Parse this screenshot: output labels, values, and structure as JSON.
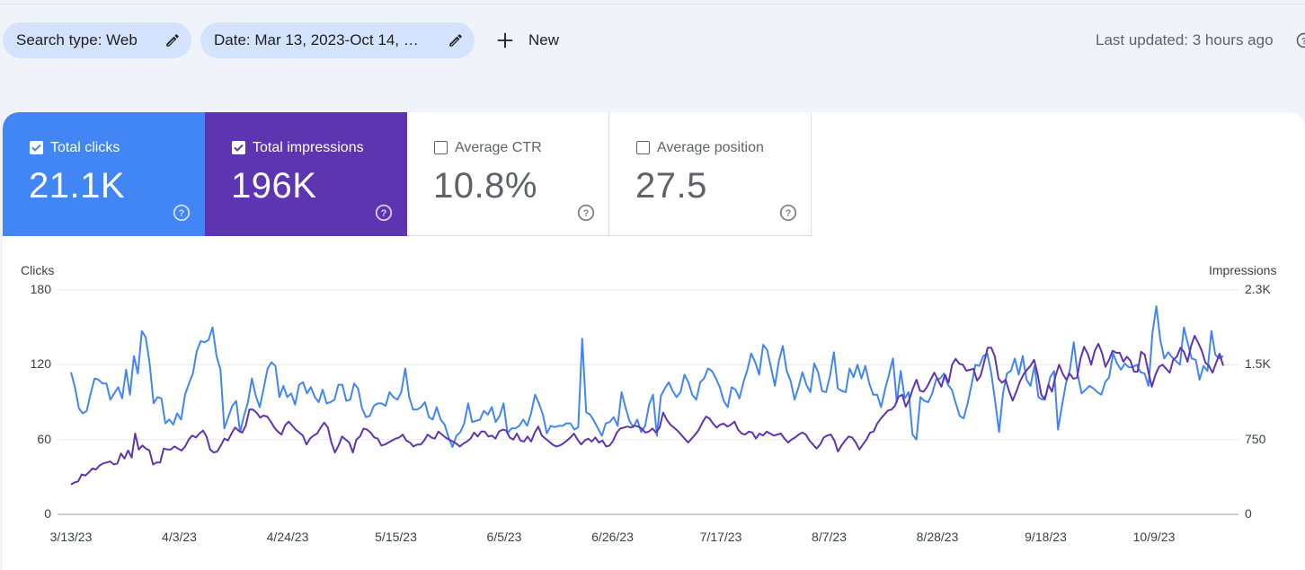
{
  "filters": {
    "search_type": "Search type: Web",
    "date": "Date: Mar 13, 2023-Oct 14, …",
    "new_label": "New"
  },
  "last_updated": "Last updated: 3 hours ago",
  "metrics": [
    {
      "label": "Total clicks",
      "value": "21.1K",
      "checked": true,
      "color": "#4285f4"
    },
    {
      "label": "Total impressions",
      "value": "196K",
      "checked": true,
      "color": "#5e35b1"
    },
    {
      "label": "Average CTR",
      "value": "10.8%",
      "checked": false
    },
    {
      "label": "Average position",
      "value": "27.5",
      "checked": false
    }
  ],
  "chart_data": {
    "type": "line",
    "left_axis_label": "Clicks",
    "right_axis_label": "Impressions",
    "left_ticks": [
      "180",
      "120",
      "60",
      "0"
    ],
    "right_ticks": [
      "2.3K",
      "1.5K",
      "750",
      "0"
    ],
    "x_ticks": [
      "3/13/23",
      "4/3/23",
      "4/24/23",
      "5/15/23",
      "6/5/23",
      "6/26/23",
      "7/17/23",
      "8/7/23",
      "8/28/23",
      "9/18/23",
      "10/9/23"
    ],
    "ylim_left": [
      0,
      180
    ],
    "ylim_right": [
      0,
      2250
    ],
    "grid": true,
    "series": [
      {
        "name": "Clicks",
        "axis": "left",
        "color": "#4285f4",
        "values": [
          114,
          102,
          85,
          81,
          83,
          97,
          109,
          108,
          105,
          105,
          92,
          97,
          102,
          93,
          116,
          96,
          127,
          113,
          147,
          142,
          121,
          89,
          94,
          93,
          73,
          76,
          72,
          81,
          76,
          96,
          105,
          113,
          131,
          139,
          138,
          140,
          150,
          127,
          116,
          69,
          78,
          87,
          91,
          66,
          79,
          90,
          109,
          95,
          86,
          101,
          117,
          122,
          119,
          94,
          103,
          94,
          97,
          88,
          104,
          106,
          97,
          102,
          94,
          90,
          100,
          89,
          90,
          92,
          104,
          104,
          91,
          92,
          105,
          101,
          85,
          78,
          79,
          87,
          89,
          89,
          87,
          98,
          94,
          92,
          98,
          117,
          94,
          84,
          84,
          86,
          90,
          78,
          76,
          86,
          76,
          72,
          62,
          54,
          63,
          66,
          73,
          89,
          74,
          75,
          76,
          83,
          80,
          86,
          74,
          79,
          89,
          65,
          69,
          69,
          71,
          76,
          71,
          81,
          96,
          89,
          80,
          65,
          71,
          70,
          71,
          71,
          73,
          73,
          68,
          70,
          141,
          82,
          80,
          75,
          69,
          63,
          73,
          74,
          78,
          71,
          98,
          86,
          75,
          70,
          76,
          66,
          71,
          88,
          96,
          63,
          95,
          101,
          106,
          99,
          94,
          98,
          112,
          106,
          96,
          92,
          106,
          109,
          117,
          115,
          109,
          102,
          91,
          86,
          102,
          100,
          93,
          106,
          116,
          129,
          122,
          112,
          136,
          132,
          118,
          103,
          123,
          135,
          115,
          107,
          92,
          102,
          114,
          104,
          98,
          121,
          114,
          99,
          98,
          111,
          130,
          101,
          99,
          98,
          117,
          110,
          120,
          109,
          119,
          105,
          96,
          96,
          86,
          100,
          112,
          125,
          90,
          115,
          93,
          98,
          64,
          60,
          94,
          91,
          90,
          97,
          108,
          109,
          113,
          104,
          100,
          89,
          79,
          77,
          89,
          104,
          120,
          119,
          127,
          129,
          114,
          91,
          66,
          97,
          113,
          115,
          125,
          112,
          127,
          108,
          103,
          119,
          94,
          92,
          96,
          110,
          115,
          68,
          87,
          105,
          116,
          138,
          112,
          97,
          100,
          103,
          101,
          98,
          96,
          106,
          110,
          129,
          121,
          116,
          121,
          118,
          118,
          120,
          114,
          113,
          103,
          145,
          167,
          140,
          125,
          130,
          126,
          123,
          120,
          150,
          137,
          125,
          124,
          108,
          119,
          115,
          147,
          128,
          125,
          127
        ],
        "x_frac_note": "daily"
      },
      {
        "name": "Impressions",
        "axis": "right",
        "color": "#5e35b1",
        "values": [
          300,
          320,
          330,
          400,
          390,
          420,
          460,
          450,
          490,
          510,
          520,
          530,
          500,
          510,
          610,
          560,
          640,
          570,
          810,
          650,
          690,
          660,
          640,
          500,
          520,
          520,
          660,
          650,
          650,
          680,
          660,
          640,
          680,
          750,
          790,
          770,
          810,
          840,
          780,
          650,
          620,
          630,
          690,
          760,
          740,
          810,
          870,
          840,
          820,
          890,
          1050,
          1050,
          1020,
          970,
          990,
          980,
          930,
          870,
          830,
          800,
          890,
          930,
          890,
          850,
          820,
          790,
          700,
          760,
          790,
          810,
          870,
          920,
          870,
          720,
          620,
          690,
          780,
          750,
          720,
          620,
          750,
          780,
          860,
          850,
          820,
          770,
          760,
          690,
          700,
          720,
          740,
          760,
          770,
          800,
          740,
          720,
          680,
          700,
          700,
          740,
          800,
          770,
          760,
          830,
          800,
          770,
          750,
          730,
          710,
          680,
          710,
          730,
          760,
          820,
          780,
          830,
          830,
          780,
          790,
          760,
          830,
          850,
          840,
          770,
          750,
          810,
          740,
          730,
          780,
          730,
          820,
          880,
          790,
          760,
          730,
          700,
          680,
          690,
          710,
          740,
          770,
          810,
          750,
          700,
          740,
          760,
          730,
          770,
          720,
          740,
          680,
          690,
          740,
          820,
          860,
          870,
          880,
          870,
          890,
          880,
          860,
          820,
          830,
          860,
          820,
          870,
          1020,
          950,
          900,
          870,
          840,
          800,
          760,
          720,
          760,
          800,
          850,
          920,
          980,
          960,
          910,
          870,
          900,
          910,
          880,
          900,
          930,
          850,
          810,
          800,
          830,
          820,
          760,
          810,
          790,
          830,
          810,
          790,
          800,
          810,
          760,
          720,
          750,
          770,
          800,
          820,
          800,
          740,
          700,
          660,
          700,
          770,
          790,
          800,
          740,
          630,
          690,
          740,
          780,
          770,
          720,
          650,
          700,
          750,
          820,
          830,
          910,
          960,
          1000,
          1040,
          1050,
          1090,
          1180,
          1200,
          1080,
          1150,
          1260,
          1350,
          1240,
          1230,
          1280,
          1350,
          1420,
          1350,
          1280,
          1400,
          1320,
          1500,
          1560,
          1510,
          1500,
          1440,
          1450,
          1460,
          1340,
          1390,
          1530,
          1670,
          1670,
          1580,
          1360,
          1320,
          1350,
          1230,
          1140,
          1230,
          1330,
          1400,
          1450,
          1490,
          1550,
          1400,
          1200,
          1150,
          1300,
          1230,
          1390,
          1500,
          1410,
          1350,
          1410,
          1360,
          1370,
          1560,
          1680,
          1610,
          1500,
          1640,
          1710,
          1620,
          1480,
          1550,
          1640,
          1620,
          1620,
          1530,
          1580,
          1540,
          1430,
          1430,
          1630,
          1600,
          1430,
          1280,
          1400,
          1480,
          1500,
          1460,
          1420,
          1550,
          1580,
          1670,
          1630,
          1530,
          1690,
          1790,
          1720,
          1640,
          1520,
          1490,
          1420,
          1520,
          1610,
          1490
        ]
      }
    ]
  }
}
